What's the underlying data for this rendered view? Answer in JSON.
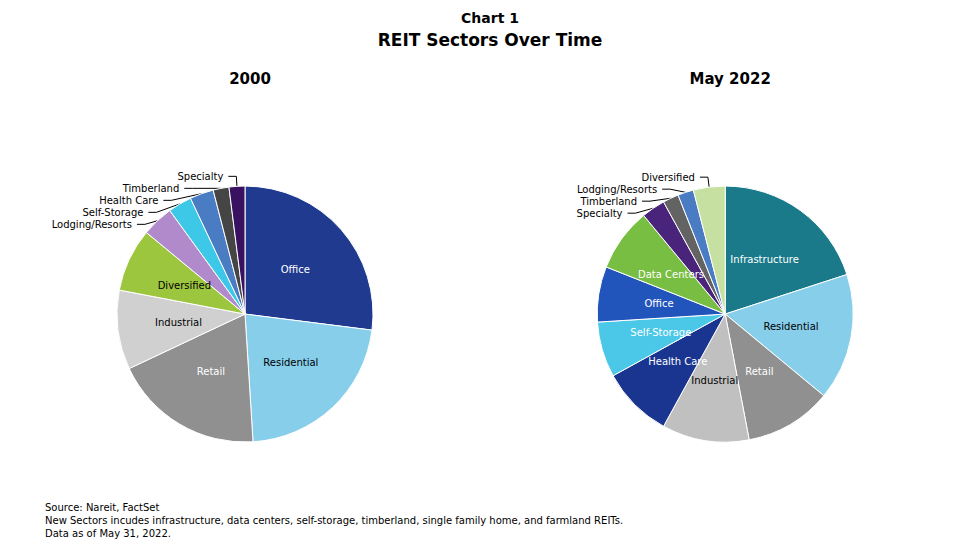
{
  "title": "Chart 1",
  "subtitle": "REIT Sectors Over Time",
  "annotations": [
    "Source: Nareit, FactSet\nNew Sectors incudes infrastructure, data centers, self-storage, timberland, single family home, and farmland REITs.\nData as of May 31, 2022."
  ],
  "chart_data": [
    {
      "type": "pie",
      "title": "2000",
      "categories": [
        "Office",
        "Residential",
        "Retail",
        "Industrial",
        "Diversified",
        "Lodging/Resorts",
        "Self-Storage",
        "Health Care",
        "Timberland",
        "Specialty"
      ],
      "values": [
        27,
        22,
        19,
        10,
        8,
        4,
        3,
        3,
        2,
        2
      ],
      "colors": [
        "#1F3A8F",
        "#87CEEB",
        "#909090",
        "#D0D0D0",
        "#9DC63F",
        "#B08ACA",
        "#3EC8E8",
        "#4A7CC4",
        "#454545",
        "#3A1060"
      ]
    },
    {
      "type": "pie",
      "title": "May 2022",
      "categories": [
        "Infrastructure",
        "Residential",
        "Retail",
        "Industrial",
        "Health Care",
        "Self-Storage",
        "Office",
        "Data Centers",
        "Specialty",
        "Timberland",
        "Lodging/Resorts",
        "Diversified"
      ],
      "values": [
        20,
        16,
        11,
        11,
        9,
        7,
        7,
        8,
        3,
        2,
        2,
        4
      ],
      "colors": [
        "#1B7A8A",
        "#87CEEB",
        "#909090",
        "#C0C0C0",
        "#1A3590",
        "#4BC8E8",
        "#2255BB",
        "#78BE42",
        "#4A237A",
        "#636363",
        "#4A7CC4",
        "#C5E0A0"
      ]
    }
  ]
}
